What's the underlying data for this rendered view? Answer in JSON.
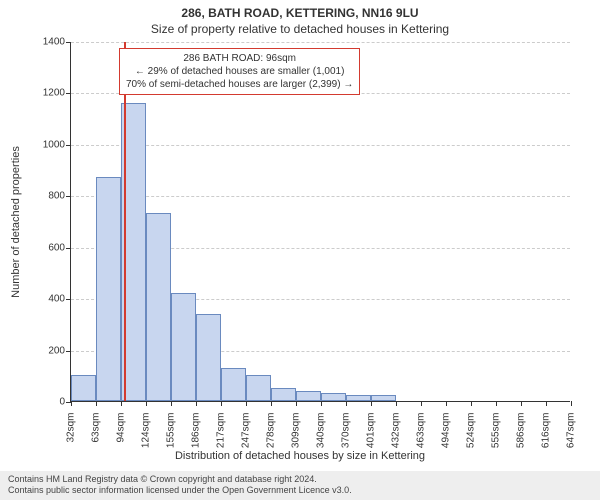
{
  "title": {
    "main": "286, BATH ROAD, KETTERING, NN16 9LU",
    "sub": "Size of property relative to detached houses in Kettering"
  },
  "chart": {
    "type": "histogram",
    "ylim": [
      0,
      1400
    ],
    "ytick_step": 200,
    "yticks": [
      0,
      200,
      400,
      600,
      800,
      1000,
      1200,
      1400
    ],
    "ylabel": "Number of detached properties",
    "xlabel": "Distribution of detached houses by size in Kettering",
    "xtick_labels": [
      "32sqm",
      "63sqm",
      "94sqm",
      "124sqm",
      "155sqm",
      "186sqm",
      "217sqm",
      "247sqm",
      "278sqm",
      "309sqm",
      "340sqm",
      "370sqm",
      "401sqm",
      "432sqm",
      "463sqm",
      "494sqm",
      "524sqm",
      "555sqm",
      "586sqm",
      "616sqm",
      "647sqm"
    ],
    "bar_values": [
      100,
      870,
      1160,
      730,
      420,
      340,
      130,
      100,
      50,
      40,
      30,
      25,
      25,
      0,
      0,
      0,
      0,
      0,
      0,
      0
    ],
    "bar_color": "#c8d6ef",
    "bar_border_color": "#6a8abf",
    "grid_color": "#cccccc",
    "background_color": "#ffffff",
    "marker_value_x_index": 2.1,
    "marker_color": "#d33a2f"
  },
  "annotation": {
    "line1": "286 BATH ROAD: 96sqm",
    "line2": "← 29% of detached houses are smaller (1,001)",
    "line3": "70% of semi-detached houses are larger (2,399) →"
  },
  "footer": {
    "line1": "Contains HM Land Registry data © Crown copyright and database right 2024.",
    "line2": "Contains public sector information licensed under the Open Government Licence v3.0."
  }
}
